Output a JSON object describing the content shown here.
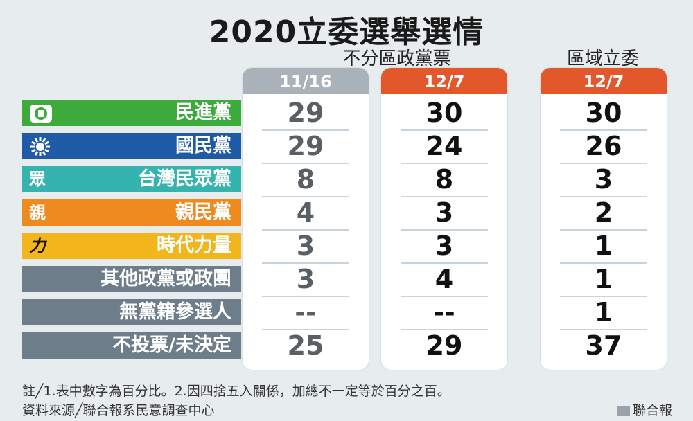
{
  "title": "2020立委選舉選情",
  "groups": {
    "party_list": "不分區政黨票",
    "district": "區域立委"
  },
  "columns": [
    {
      "label": "11/16",
      "color": "#a9b2b8",
      "text_color": "#5a5f63"
    },
    {
      "label": "12/7",
      "color": "#e2582a",
      "text_color": "#111111"
    },
    {
      "label": "12/7",
      "color": "#e2582a",
      "text_color": "#111111"
    }
  ],
  "parties": [
    {
      "name": "民進黨",
      "icon": "dpp-flag-icon",
      "color": "#3daa3c"
    },
    {
      "name": "國民黨",
      "icon": "kmt-sun-icon",
      "color": "#1f5aa6"
    },
    {
      "name": "台灣民眾黨",
      "icon": "tpp-icon",
      "icon_text": "眾",
      "color": "#35b3ae"
    },
    {
      "name": "親民黨",
      "icon": "pfp-icon",
      "icon_text": "親",
      "color": "#ef8a1e"
    },
    {
      "name": "時代力量",
      "icon": "npp-icon",
      "icon_text": "力",
      "color": "#f2b51c"
    },
    {
      "name": "其他政黨或政團",
      "icon": "",
      "color": "#6d7e8a"
    },
    {
      "name": "無黨籍參選人",
      "icon": "",
      "color": "#6d7e8a"
    },
    {
      "name": "不投票/未決定",
      "icon": "",
      "color": "#6d7e8a"
    }
  ],
  "chart_data": {
    "type": "table",
    "title": "2020立委選舉選情",
    "columns": [
      "不分區政黨票 11/16",
      "不分區政黨票 12/7",
      "區域立委 12/7"
    ],
    "rows": [
      "民進黨",
      "國民黨",
      "台灣民眾黨",
      "親民黨",
      "時代力量",
      "其他政黨或政團",
      "無黨籍參選人",
      "不投票/未決定"
    ],
    "values": [
      [
        "29",
        "30",
        "30"
      ],
      [
        "29",
        "24",
        "26"
      ],
      [
        "8",
        "8",
        "3"
      ],
      [
        "4",
        "3",
        "2"
      ],
      [
        "3",
        "3",
        "1"
      ],
      [
        "3",
        "4",
        "1"
      ],
      [
        "--",
        "--",
        "1"
      ],
      [
        "25",
        "29",
        "37"
      ]
    ],
    "unit": "%"
  },
  "footnote1": "註╱1.表中數字為百分比。2.因四捨五入關係，加總不一定等於百分之百。",
  "footnote2": "資料來源╱聯合報系民意調查中心",
  "credit": "聯合報"
}
